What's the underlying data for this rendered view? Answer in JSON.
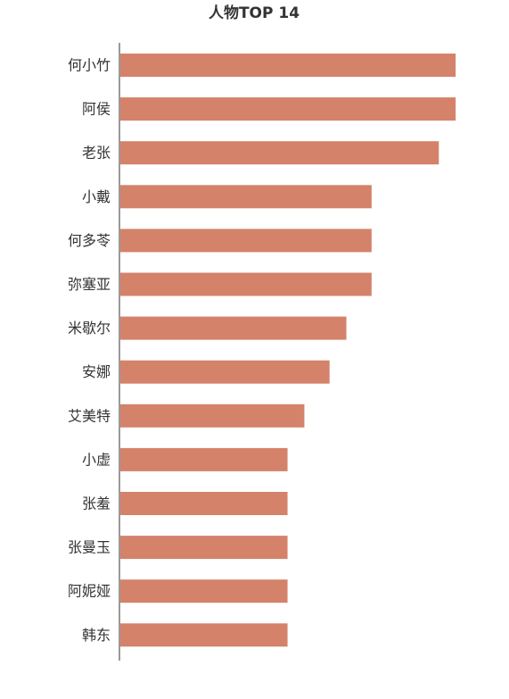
{
  "chart_data": {
    "type": "bar",
    "orientation": "horizontal",
    "title": "人物TOP 14",
    "categories": [
      "何小竹",
      "阿侯",
      "老张",
      "小戴",
      "何多苓",
      "弥塞亚",
      "米歇尔",
      "安娜",
      "艾美特",
      "小虚",
      "张羞",
      "张曼玉",
      "阿妮娅",
      "韩东"
    ],
    "values": [
      40,
      40,
      38,
      30,
      30,
      30,
      27,
      25,
      22,
      20,
      20,
      20,
      20,
      20
    ],
    "xlim": [
      0,
      42
    ],
    "grid": false,
    "legend": "none",
    "colors": {
      "bar": "#d4826a",
      "axis": "#333333",
      "text": "#333333"
    }
  }
}
